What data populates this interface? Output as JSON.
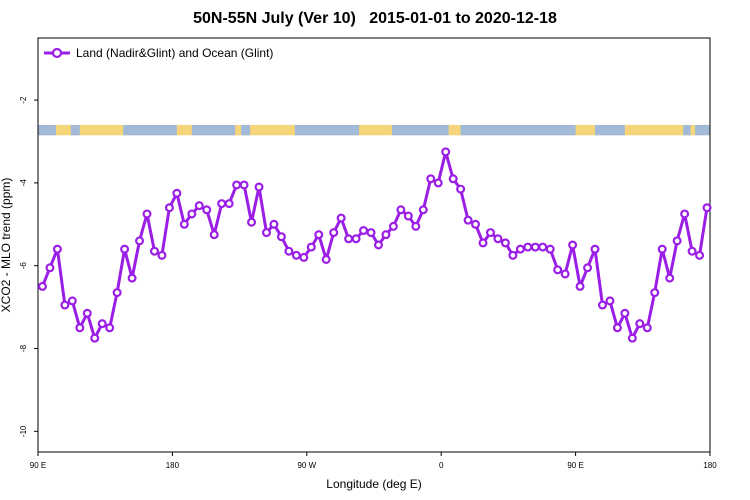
{
  "chart_data": {
    "type": "line",
    "title": "50N-55N July (Ver 10)   2015-01-01 to 2020-12-18",
    "xlabel": "Longitude (deg E)",
    "ylabel": "XCO2 - MLO trend (ppm)",
    "x_ticks": [
      {
        "value": 90,
        "label": "90 E"
      },
      {
        "value": 180,
        "label": "180"
      },
      {
        "value": 270,
        "label": "90 W"
      },
      {
        "value": 360,
        "label": "0"
      },
      {
        "value": 450,
        "label": "90 E"
      },
      {
        "value": 540,
        "label": "180"
      }
    ],
    "y_ticks": [
      -10,
      -8,
      -6,
      -4,
      -2
    ],
    "xlim": [
      90,
      540
    ],
    "ylim": [
      -10.5,
      -0.5
    ],
    "grid": false,
    "legend": {
      "position": "top-left"
    },
    "series": [
      {
        "name": "Land (Nadir&Glint) and Ocean (Glint)",
        "color": "#9b1ee6",
        "marker": "open-circle",
        "x": [
          93,
          98,
          103,
          108,
          113,
          118,
          123,
          128,
          133,
          138,
          143,
          148,
          153,
          158,
          163,
          168,
          173,
          178,
          183,
          188,
          193,
          198,
          203,
          208,
          213,
          218,
          223,
          228,
          233,
          238,
          243,
          248,
          253,
          258,
          263,
          268,
          273,
          278,
          283,
          288,
          293,
          298,
          303,
          308,
          313,
          318,
          323,
          328,
          333,
          338,
          343,
          348,
          353,
          358,
          363,
          368,
          373,
          378,
          383,
          388,
          393,
          398,
          403,
          408,
          413,
          418,
          423,
          428,
          433,
          438,
          443,
          448,
          453,
          458,
          463,
          468,
          473,
          478,
          483,
          488,
          493,
          498,
          503,
          508,
          513,
          518,
          523,
          528,
          533,
          538
        ],
        "values": [
          -6.5,
          -6.05,
          -5.6,
          -6.95,
          -6.85,
          -7.5,
          -7.15,
          -7.75,
          -7.4,
          -7.5,
          -6.65,
          -5.6,
          -6.3,
          -5.4,
          -4.75,
          -5.65,
          -5.75,
          -4.6,
          -4.25,
          -5.0,
          -4.75,
          -4.55,
          -4.65,
          -5.25,
          -4.5,
          -4.5,
          -4.05,
          -4.05,
          -4.95,
          -4.1,
          -5.2,
          -5.0,
          -5.3,
          -5.65,
          -5.75,
          -5.8,
          -5.55,
          -5.25,
          -5.85,
          -5.2,
          -4.85,
          -5.35,
          -5.35,
          -5.15,
          -5.2,
          -5.5,
          -5.25,
          -5.05,
          -4.65,
          -4.8,
          -5.05,
          -4.65,
          -3.9,
          -4.0,
          -3.25,
          -3.9,
          -4.15,
          -4.9,
          -5.0,
          -5.45,
          -5.2,
          -5.35,
          -5.45,
          -5.75,
          -5.6,
          -5.55,
          -5.55,
          -5.55,
          -5.6,
          -6.1,
          -6.2,
          -5.5,
          -6.5,
          -6.05,
          -5.6,
          -6.95,
          -6.85,
          -7.5,
          -7.15,
          -7.75,
          -7.4,
          -7.5,
          -6.65,
          -5.6,
          -6.3,
          -5.4,
          -4.75,
          -5.65,
          -5.75,
          -4.6
        ]
      }
    ],
    "surface_strip": {
      "y_range": [
        -2.85,
        -2.6
      ],
      "land_color": "#f5d47a",
      "ocean_color": "#a3b9d8",
      "ocean_segments": [
        [
          90,
          102
        ],
        [
          112,
          118
        ],
        [
          147,
          183
        ],
        [
          193,
          222
        ],
        [
          226,
          232
        ],
        [
          262,
          305
        ],
        [
          327,
          365
        ],
        [
          373,
          450
        ],
        [
          463,
          483
        ],
        [
          522,
          527
        ],
        [
          530,
          540
        ]
      ]
    }
  }
}
